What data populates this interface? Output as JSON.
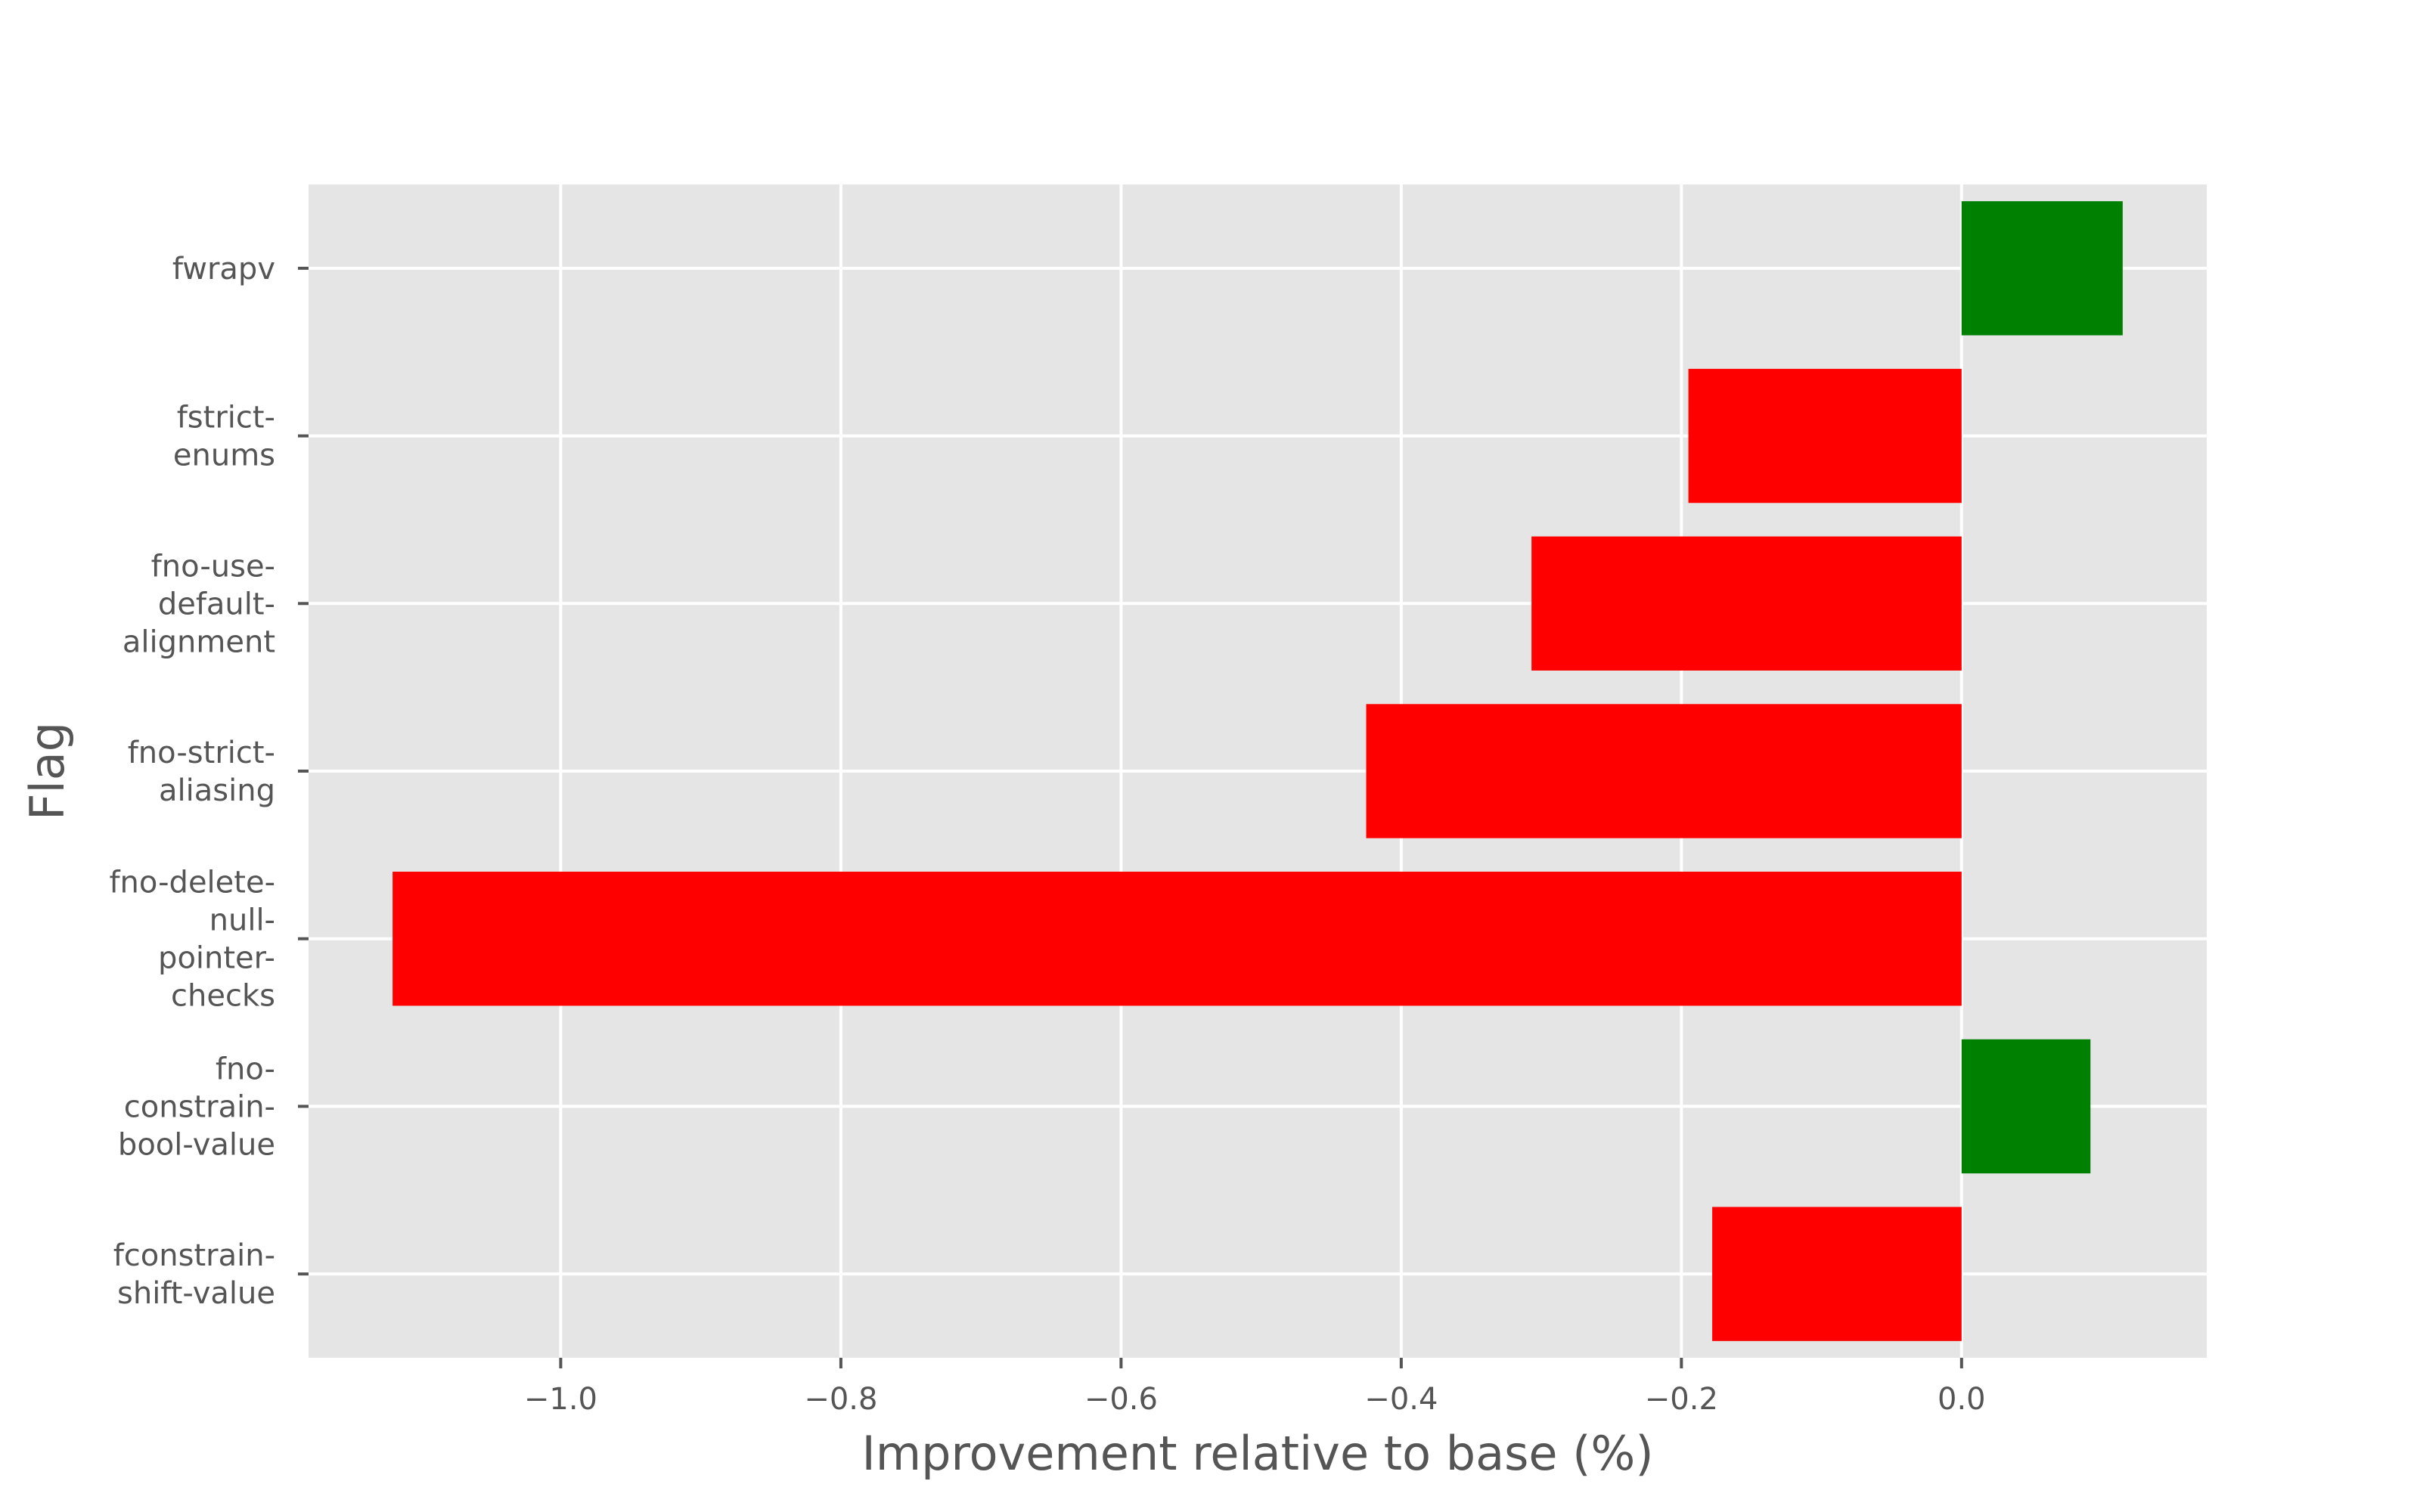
{
  "chart_data": {
    "type": "bar",
    "orientation": "horizontal",
    "title": "",
    "xlabel": "Improvement relative to base (%)",
    "ylabel": "Flag",
    "categories": [
      "fwrapv",
      "fstrict-enums",
      "fno-use-default-alignment",
      "fno-strict-aliasing",
      "fno-delete-null-pointer-checks",
      "fno-constrain-bool-value",
      "fconstrain-shift-value"
    ],
    "category_label_lines": [
      [
        "fwrapv"
      ],
      [
        "fstrict-",
        "enums"
      ],
      [
        "fno-use-",
        "default-",
        "alignment"
      ],
      [
        "fno-strict-",
        "aliasing"
      ],
      [
        "fno-delete-",
        "null-",
        "pointer-",
        "checks"
      ],
      [
        "fno-",
        "constrain-",
        "bool-value"
      ],
      [
        "fconstrain-",
        "shift-value"
      ]
    ],
    "values": [
      0.115,
      -0.195,
      -0.307,
      -0.425,
      -1.12,
      0.092,
      -0.178
    ],
    "xlim": [
      -1.18,
      0.175
    ],
    "xticks": [
      -1.0,
      -0.8,
      -0.6,
      -0.4,
      -0.2,
      0.0
    ],
    "xtick_labels": [
      "−1.0",
      "−0.8",
      "−0.6",
      "−0.4",
      "−0.2",
      "0.0"
    ],
    "grid": true,
    "colors": {
      "positive": "#008000",
      "negative": "#ff0000",
      "plot_background": "#e5e5e5",
      "grid": "#ffffff",
      "text": "#555555"
    }
  }
}
